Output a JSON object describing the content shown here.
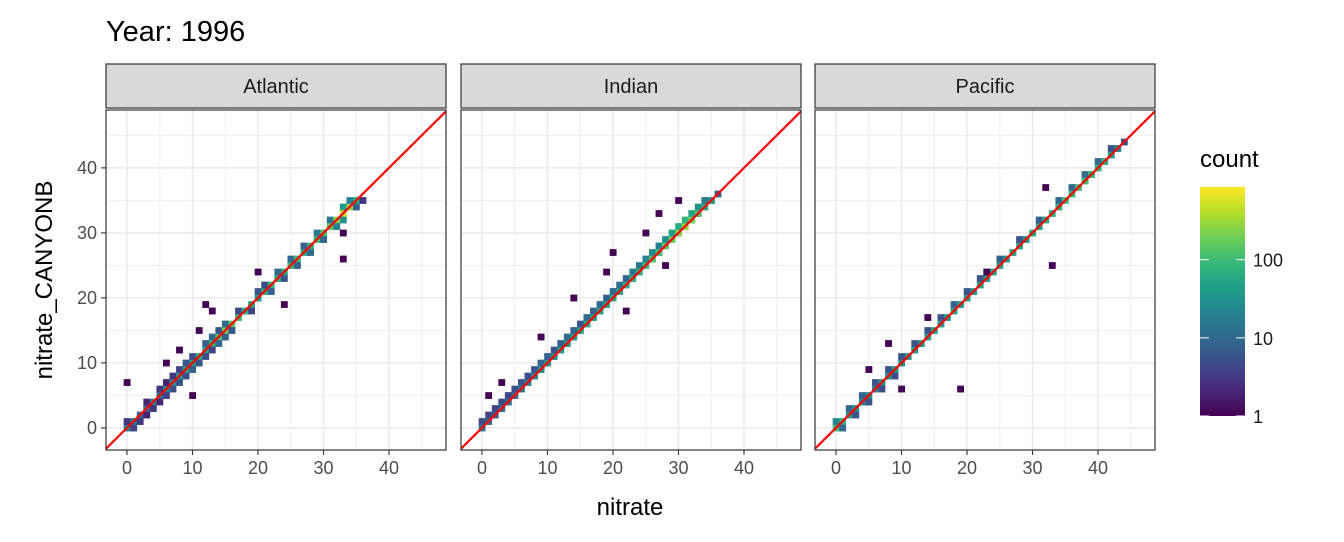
{
  "chart_data": {
    "type": "heatmap",
    "title": "Year: 1996",
    "xlabel": "nitrate",
    "ylabel": "nitrate_CANYONB",
    "xlim": [
      -3.2,
      48.7
    ],
    "ylim": [
      -3.4,
      48.9
    ],
    "x_ticks": [
      0,
      10,
      20,
      30,
      40
    ],
    "y_ticks": [
      0,
      10,
      20,
      30,
      40
    ],
    "grid": true,
    "bin_width": 1,
    "reference_line": {
      "slope": 1,
      "intercept": 0,
      "color": "#ff0000"
    },
    "legend": {
      "title": "count",
      "position": "right",
      "scale": "log10",
      "range": [
        1,
        850
      ],
      "ticks": [
        1,
        10,
        100
      ],
      "tick_labels": [
        "1",
        "10",
        "100"
      ],
      "palette": [
        "#440154",
        "#482878",
        "#3e4989",
        "#31688e",
        "#26828e",
        "#1f9e89",
        "#35b779",
        "#6ece58",
        "#b5de2b",
        "#fde725"
      ]
    },
    "panels": [
      {
        "name": "Atlantic",
        "bins": [
          [
            0,
            0,
            20
          ],
          [
            0,
            1,
            3
          ],
          [
            1,
            0,
            4
          ],
          [
            1,
            1,
            15
          ],
          [
            2,
            2,
            10
          ],
          [
            2,
            1,
            3
          ],
          [
            3,
            3,
            12
          ],
          [
            3,
            2,
            2
          ],
          [
            3,
            4,
            2
          ],
          [
            4,
            4,
            20
          ],
          [
            4,
            3,
            3
          ],
          [
            5,
            5,
            15
          ],
          [
            5,
            4,
            2
          ],
          [
            5,
            6,
            3
          ],
          [
            6,
            6,
            25
          ],
          [
            6,
            5,
            4
          ],
          [
            6,
            7,
            2
          ],
          [
            7,
            7,
            30
          ],
          [
            7,
            6,
            5
          ],
          [
            7,
            8,
            3
          ],
          [
            8,
            8,
            40
          ],
          [
            8,
            7,
            6
          ],
          [
            8,
            9,
            4
          ],
          [
            9,
            9,
            50
          ],
          [
            9,
            8,
            5
          ],
          [
            9,
            10,
            6
          ],
          [
            10,
            10,
            40
          ],
          [
            10,
            9,
            8
          ],
          [
            10,
            11,
            5
          ],
          [
            11,
            11,
            60
          ],
          [
            11,
            10,
            6
          ],
          [
            12,
            12,
            50
          ],
          [
            12,
            13,
            8
          ],
          [
            12,
            11,
            5
          ],
          [
            13,
            13,
            80
          ],
          [
            13,
            14,
            10
          ],
          [
            13,
            12,
            4
          ],
          [
            14,
            14,
            120
          ],
          [
            14,
            13,
            10
          ],
          [
            14,
            15,
            6
          ],
          [
            15,
            15,
            200
          ],
          [
            15,
            14,
            8
          ],
          [
            15,
            16,
            10
          ],
          [
            16,
            16,
            150
          ],
          [
            16,
            15,
            6
          ],
          [
            17,
            17,
            100
          ],
          [
            17,
            18,
            5
          ],
          [
            18,
            18,
            60
          ],
          [
            19,
            19,
            50
          ],
          [
            19,
            18,
            4
          ],
          [
            20,
            20,
            40
          ],
          [
            20,
            21,
            6
          ],
          [
            21,
            21,
            60
          ],
          [
            21,
            22,
            5
          ],
          [
            22,
            22,
            80
          ],
          [
            22,
            21,
            8
          ],
          [
            23,
            23,
            60
          ],
          [
            23,
            24,
            10
          ],
          [
            24,
            24,
            50
          ],
          [
            24,
            23,
            6
          ],
          [
            25,
            25,
            80
          ],
          [
            25,
            26,
            10
          ],
          [
            26,
            26,
            100
          ],
          [
            26,
            25,
            8
          ],
          [
            27,
            27,
            60
          ],
          [
            27,
            28,
            8
          ],
          [
            28,
            28,
            80
          ],
          [
            28,
            27,
            10
          ],
          [
            29,
            29,
            100
          ],
          [
            29,
            30,
            15
          ],
          [
            30,
            30,
            120
          ],
          [
            30,
            29,
            10
          ],
          [
            31,
            31,
            150
          ],
          [
            31,
            32,
            15
          ],
          [
            32,
            32,
            250
          ],
          [
            32,
            31,
            20
          ],
          [
            33,
            33,
            500
          ],
          [
            33,
            34,
            40
          ],
          [
            33,
            32,
            30
          ],
          [
            34,
            34,
            300
          ],
          [
            34,
            35,
            20
          ],
          [
            35,
            35,
            60
          ],
          [
            35,
            34,
            8
          ],
          [
            36,
            35,
            3
          ],
          [
            0,
            7,
            1
          ],
          [
            24,
            19,
            1
          ],
          [
            20,
            24,
            1
          ],
          [
            33,
            26,
            1
          ],
          [
            33,
            30,
            1
          ],
          [
            13,
            18,
            1
          ],
          [
            10,
            5,
            1
          ],
          [
            12,
            19,
            1
          ],
          [
            8,
            12,
            1
          ],
          [
            6,
            10,
            1
          ],
          [
            11,
            15,
            1
          ]
        ]
      },
      {
        "name": "Indian",
        "bins": [
          [
            0,
            0,
            15
          ],
          [
            0,
            1,
            5
          ],
          [
            1,
            1,
            10
          ],
          [
            1,
            2,
            4
          ],
          [
            2,
            2,
            8
          ],
          [
            2,
            3,
            4
          ],
          [
            3,
            3,
            10
          ],
          [
            3,
            4,
            5
          ],
          [
            4,
            4,
            12
          ],
          [
            4,
            5,
            4
          ],
          [
            5,
            5,
            10
          ],
          [
            5,
            6,
            5
          ],
          [
            6,
            6,
            15
          ],
          [
            6,
            7,
            6
          ],
          [
            7,
            7,
            20
          ],
          [
            7,
            8,
            5
          ],
          [
            8,
            8,
            25
          ],
          [
            8,
            9,
            6
          ],
          [
            9,
            9,
            30
          ],
          [
            9,
            10,
            8
          ],
          [
            10,
            10,
            35
          ],
          [
            10,
            11,
            8
          ],
          [
            11,
            11,
            30
          ],
          [
            11,
            12,
            6
          ],
          [
            12,
            12,
            40
          ],
          [
            12,
            13,
            8
          ],
          [
            13,
            13,
            35
          ],
          [
            13,
            14,
            10
          ],
          [
            14,
            14,
            40
          ],
          [
            14,
            15,
            8
          ],
          [
            15,
            15,
            45
          ],
          [
            15,
            16,
            6
          ],
          [
            16,
            16,
            50
          ],
          [
            16,
            17,
            10
          ],
          [
            17,
            17,
            40
          ],
          [
            17,
            18,
            8
          ],
          [
            18,
            18,
            50
          ],
          [
            18,
            19,
            10
          ],
          [
            19,
            19,
            45
          ],
          [
            19,
            20,
            8
          ],
          [
            20,
            20,
            60
          ],
          [
            20,
            21,
            10
          ],
          [
            21,
            21,
            50
          ],
          [
            21,
            22,
            12
          ],
          [
            22,
            22,
            60
          ],
          [
            22,
            23,
            10
          ],
          [
            23,
            23,
            70
          ],
          [
            23,
            24,
            15
          ],
          [
            24,
            24,
            80
          ],
          [
            24,
            25,
            15
          ],
          [
            25,
            25,
            100
          ],
          [
            25,
            26,
            20
          ],
          [
            26,
            26,
            120
          ],
          [
            26,
            27,
            25
          ],
          [
            27,
            27,
            100
          ],
          [
            27,
            28,
            20
          ],
          [
            28,
            28,
            150
          ],
          [
            28,
            29,
            30
          ],
          [
            29,
            29,
            180
          ],
          [
            29,
            30,
            40
          ],
          [
            30,
            30,
            250
          ],
          [
            30,
            31,
            60
          ],
          [
            31,
            31,
            300
          ],
          [
            31,
            32,
            80
          ],
          [
            32,
            32,
            200
          ],
          [
            32,
            33,
            50
          ],
          [
            33,
            33,
            120
          ],
          [
            33,
            34,
            30
          ],
          [
            34,
            34,
            60
          ],
          [
            34,
            35,
            15
          ],
          [
            35,
            35,
            30
          ],
          [
            36,
            36,
            8
          ],
          [
            1,
            5,
            1
          ],
          [
            3,
            7,
            1
          ],
          [
            9,
            14,
            1
          ],
          [
            14,
            20,
            1
          ],
          [
            19,
            24,
            1
          ],
          [
            20,
            27,
            1
          ],
          [
            25,
            30,
            1
          ],
          [
            27,
            33,
            1
          ],
          [
            30,
            35,
            1
          ],
          [
            28,
            25,
            1
          ],
          [
            22,
            18,
            1
          ]
        ]
      },
      {
        "name": "Pacific",
        "bins": [
          [
            0,
            0,
            100
          ],
          [
            0,
            1,
            20
          ],
          [
            1,
            1,
            80
          ],
          [
            1,
            0,
            10
          ],
          [
            2,
            2,
            40
          ],
          [
            2,
            3,
            10
          ],
          [
            3,
            3,
            30
          ],
          [
            3,
            2,
            6
          ],
          [
            4,
            4,
            25
          ],
          [
            4,
            5,
            8
          ],
          [
            5,
            5,
            30
          ],
          [
            5,
            4,
            6
          ],
          [
            6,
            6,
            25
          ],
          [
            6,
            7,
            6
          ],
          [
            7,
            7,
            30
          ],
          [
            7,
            6,
            5
          ],
          [
            8,
            8,
            35
          ],
          [
            8,
            9,
            6
          ],
          [
            9,
            9,
            40
          ],
          [
            9,
            8,
            5
          ],
          [
            10,
            10,
            30
          ],
          [
            10,
            11,
            6
          ],
          [
            11,
            11,
            35
          ],
          [
            12,
            12,
            40
          ],
          [
            12,
            13,
            6
          ],
          [
            13,
            13,
            35
          ],
          [
            14,
            14,
            45
          ],
          [
            14,
            15,
            6
          ],
          [
            15,
            15,
            50
          ],
          [
            16,
            16,
            40
          ],
          [
            16,
            17,
            6
          ],
          [
            17,
            17,
            45
          ],
          [
            18,
            18,
            50
          ],
          [
            18,
            19,
            8
          ],
          [
            19,
            19,
            40
          ],
          [
            20,
            20,
            45
          ],
          [
            20,
            21,
            6
          ],
          [
            21,
            21,
            40
          ],
          [
            22,
            22,
            50
          ],
          [
            22,
            23,
            6
          ],
          [
            23,
            23,
            40
          ],
          [
            24,
            24,
            45
          ],
          [
            25,
            25,
            50
          ],
          [
            25,
            26,
            8
          ],
          [
            26,
            26,
            40
          ],
          [
            27,
            27,
            45
          ],
          [
            28,
            28,
            50
          ],
          [
            28,
            29,
            6
          ],
          [
            29,
            29,
            40
          ],
          [
            30,
            30,
            60
          ],
          [
            31,
            31,
            50
          ],
          [
            31,
            32,
            8
          ],
          [
            32,
            32,
            60
          ],
          [
            33,
            33,
            70
          ],
          [
            34,
            34,
            80
          ],
          [
            34,
            35,
            10
          ],
          [
            35,
            35,
            100
          ],
          [
            36,
            36,
            90
          ],
          [
            36,
            37,
            10
          ],
          [
            37,
            37,
            110
          ],
          [
            38,
            38,
            100
          ],
          [
            38,
            39,
            12
          ],
          [
            39,
            39,
            90
          ],
          [
            40,
            40,
            80
          ],
          [
            40,
            41,
            10
          ],
          [
            41,
            41,
            60
          ],
          [
            42,
            42,
            40
          ],
          [
            42,
            43,
            6
          ],
          [
            43,
            43,
            20
          ],
          [
            44,
            44,
            5
          ],
          [
            19,
            6,
            1
          ],
          [
            33,
            25,
            1
          ],
          [
            32,
            37,
            1
          ],
          [
            23,
            24,
            1
          ],
          [
            8,
            13,
            1
          ],
          [
            5,
            9,
            1
          ],
          [
            14,
            17,
            1
          ],
          [
            10,
            6,
            1
          ]
        ]
      }
    ]
  }
}
